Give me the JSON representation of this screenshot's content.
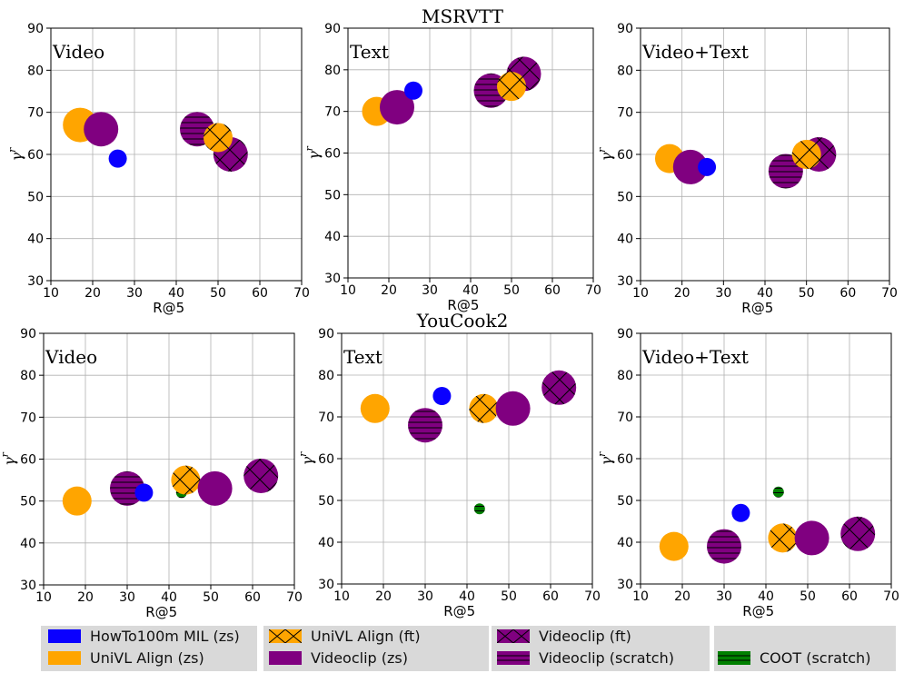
{
  "group_titles": [
    "MSRVTT",
    "YouCook2"
  ],
  "legend": [
    {
      "label": "HowTo100m MIL (zs)",
      "color": "#0a00ff",
      "hatch": "none"
    },
    {
      "label": "UniVL Align (zs)",
      "color": "#ffa500",
      "hatch": "none"
    },
    {
      "label": "UniVL Align (ft)",
      "color": "#ffa500",
      "hatch": "x"
    },
    {
      "label": "Videoclip (zs)",
      "color": "#800080",
      "hatch": "none"
    },
    {
      "label": "Videoclip (ft)",
      "color": "#800080",
      "hatch": "x"
    },
    {
      "label": "Videoclip (scratch)",
      "color": "#800080",
      "hatch": "-"
    },
    {
      "label": "COOT (scratch)",
      "color": "#008000",
      "hatch": "-"
    }
  ],
  "chart_data": [
    {
      "type": "scatter",
      "group": "MSRVTT",
      "panel_label": "Video",
      "xlabel": "R@5",
      "ylabel": "γ^r",
      "xlim": [
        10,
        70
      ],
      "ylim": [
        30,
        90
      ],
      "xticks": [
        10,
        20,
        30,
        40,
        50,
        60,
        70
      ],
      "yticks": [
        30,
        40,
        50,
        60,
        70,
        80,
        90
      ],
      "grid": true,
      "points": [
        {
          "series": "UniVL Align (zs)",
          "x": 17,
          "y": 67,
          "size": "large"
        },
        {
          "series": "Videoclip (zs)",
          "x": 22,
          "y": 66,
          "size": "large"
        },
        {
          "series": "HowTo100m MIL (zs)",
          "x": 26,
          "y": 59,
          "size": "small"
        },
        {
          "series": "Videoclip (scratch)",
          "x": 45,
          "y": 66,
          "size": "large"
        },
        {
          "series": "Videoclip (ft)",
          "x": 53,
          "y": 60,
          "size": "large"
        },
        {
          "series": "UniVL Align (ft)",
          "x": 50,
          "y": 64,
          "size": "medium"
        }
      ]
    },
    {
      "type": "scatter",
      "group": "MSRVTT",
      "panel_label": "Text",
      "xlabel": "R@5",
      "ylabel": "γ^r",
      "xlim": [
        10,
        70
      ],
      "ylim": [
        30,
        90
      ],
      "xticks": [
        10,
        20,
        30,
        40,
        50,
        60,
        70
      ],
      "yticks": [
        30,
        40,
        50,
        60,
        70,
        80,
        90
      ],
      "grid": true,
      "points": [
        {
          "series": "UniVL Align (zs)",
          "x": 17,
          "y": 70,
          "size": "medium"
        },
        {
          "series": "Videoclip (zs)",
          "x": 22,
          "y": 71,
          "size": "large"
        },
        {
          "series": "HowTo100m MIL (zs)",
          "x": 26,
          "y": 75,
          "size": "small"
        },
        {
          "series": "Videoclip (scratch)",
          "x": 45,
          "y": 75,
          "size": "large"
        },
        {
          "series": "Videoclip (ft)",
          "x": 53,
          "y": 79,
          "size": "large"
        },
        {
          "series": "UniVL Align (ft)",
          "x": 50,
          "y": 76,
          "size": "medium"
        }
      ]
    },
    {
      "type": "scatter",
      "group": "MSRVTT",
      "panel_label": "Video+Text",
      "xlabel": "R@5",
      "ylabel": "γ^r",
      "xlim": [
        10,
        70
      ],
      "ylim": [
        30,
        90
      ],
      "xticks": [
        10,
        20,
        30,
        40,
        50,
        60,
        70
      ],
      "yticks": [
        30,
        40,
        50,
        60,
        70,
        80,
        90
      ],
      "grid": true,
      "points": [
        {
          "series": "UniVL Align (zs)",
          "x": 17,
          "y": 59,
          "size": "medium"
        },
        {
          "series": "Videoclip (zs)",
          "x": 22,
          "y": 57,
          "size": "large"
        },
        {
          "series": "HowTo100m MIL (zs)",
          "x": 26,
          "y": 57,
          "size": "small"
        },
        {
          "series": "Videoclip (scratch)",
          "x": 45,
          "y": 56,
          "size": "large"
        },
        {
          "series": "Videoclip (ft)",
          "x": 53,
          "y": 60,
          "size": "large"
        },
        {
          "series": "UniVL Align (ft)",
          "x": 50,
          "y": 60,
          "size": "medium"
        }
      ]
    },
    {
      "type": "scatter",
      "group": "YouCook2",
      "panel_label": "Video",
      "xlabel": "R@5",
      "ylabel": "γ^r",
      "xlim": [
        10,
        70
      ],
      "ylim": [
        30,
        90
      ],
      "xticks": [
        10,
        20,
        30,
        40,
        50,
        60,
        70
      ],
      "yticks": [
        30,
        40,
        50,
        60,
        70,
        80,
        90
      ],
      "grid": true,
      "points": [
        {
          "series": "UniVL Align (zs)",
          "x": 18,
          "y": 50,
          "size": "medium"
        },
        {
          "series": "Videoclip (scratch)",
          "x": 30,
          "y": 53,
          "size": "large"
        },
        {
          "series": "HowTo100m MIL (zs)",
          "x": 34,
          "y": 52,
          "size": "small"
        },
        {
          "series": "COOT (scratch)",
          "x": 43,
          "y": 52,
          "size": "tiny"
        },
        {
          "series": "UniVL Align (ft)",
          "x": 44,
          "y": 55,
          "size": "medium"
        },
        {
          "series": "Videoclip (zs)",
          "x": 51,
          "y": 53,
          "size": "large"
        },
        {
          "series": "Videoclip (ft)",
          "x": 62,
          "y": 56,
          "size": "large"
        }
      ]
    },
    {
      "type": "scatter",
      "group": "YouCook2",
      "panel_label": "Text",
      "xlabel": "R@5",
      "ylabel": "γ^r",
      "xlim": [
        10,
        70
      ],
      "ylim": [
        30,
        90
      ],
      "xticks": [
        10,
        20,
        30,
        40,
        50,
        60,
        70
      ],
      "yticks": [
        30,
        40,
        50,
        60,
        70,
        80,
        90
      ],
      "grid": true,
      "points": [
        {
          "series": "UniVL Align (zs)",
          "x": 18,
          "y": 72,
          "size": "medium"
        },
        {
          "series": "Videoclip (scratch)",
          "x": 30,
          "y": 68,
          "size": "large"
        },
        {
          "series": "HowTo100m MIL (zs)",
          "x": 34,
          "y": 75,
          "size": "small"
        },
        {
          "series": "COOT (scratch)",
          "x": 43,
          "y": 48,
          "size": "tiny"
        },
        {
          "series": "UniVL Align (ft)",
          "x": 44,
          "y": 72,
          "size": "medium"
        },
        {
          "series": "Videoclip (zs)",
          "x": 51,
          "y": 72,
          "size": "large"
        },
        {
          "series": "Videoclip (ft)",
          "x": 62,
          "y": 77,
          "size": "large"
        }
      ]
    },
    {
      "type": "scatter",
      "group": "YouCook2",
      "panel_label": "Video+Text",
      "xlabel": "R@5",
      "ylabel": "γ^r",
      "xlim": [
        10,
        70
      ],
      "ylim": [
        30,
        90
      ],
      "xticks": [
        10,
        20,
        30,
        40,
        50,
        60,
        70
      ],
      "yticks": [
        30,
        40,
        50,
        60,
        70,
        80,
        90
      ],
      "grid": true,
      "points": [
        {
          "series": "UniVL Align (zs)",
          "x": 18,
          "y": 39,
          "size": "medium"
        },
        {
          "series": "Videoclip (scratch)",
          "x": 30,
          "y": 39,
          "size": "large"
        },
        {
          "series": "HowTo100m MIL (zs)",
          "x": 34,
          "y": 47,
          "size": "small"
        },
        {
          "series": "COOT (scratch)",
          "x": 43,
          "y": 52,
          "size": "tiny"
        },
        {
          "series": "UniVL Align (ft)",
          "x": 44,
          "y": 41,
          "size": "medium"
        },
        {
          "series": "Videoclip (zs)",
          "x": 51,
          "y": 41,
          "size": "large"
        },
        {
          "series": "Videoclip (ft)",
          "x": 62,
          "y": 42,
          "size": "large"
        }
      ]
    }
  ]
}
